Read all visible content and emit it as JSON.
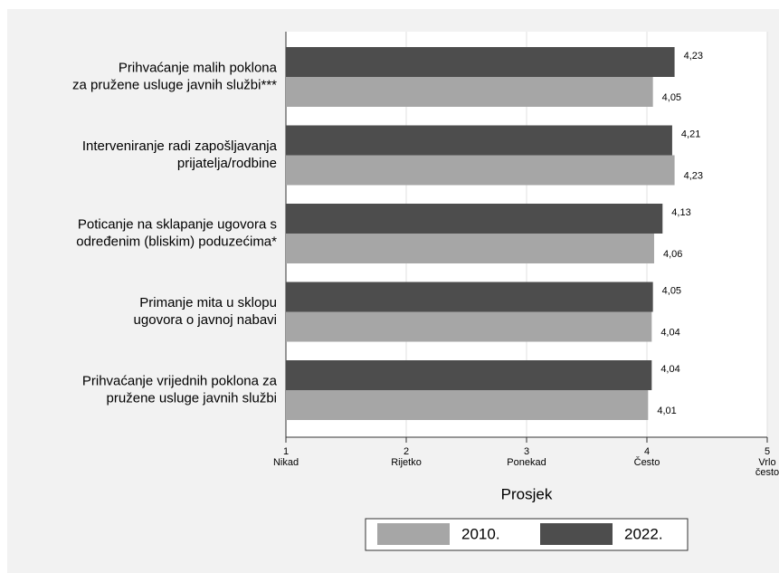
{
  "chart_data": {
    "type": "barh",
    "xlabel": "Prosjek",
    "categories": [
      [
        "Prihvaćanje malih poklona",
        "za pružene usluge javnih službi***"
      ],
      [
        "Interveniranje radi zapošljavanja",
        "prijatelja/rodbine"
      ],
      [
        "Poticanje na sklapanje ugovora s",
        "određenim (bliskim) poduzećima*"
      ],
      [
        "Primanje mita u sklopu",
        "ugovora o javnoj nabavi"
      ],
      [
        "Prihvaćanje vrijednih poklona za",
        "pružene usluge javnih službi"
      ]
    ],
    "series": [
      {
        "name": "2010.",
        "color": "#a6a6a6",
        "values": [
          4.05,
          4.23,
          4.06,
          4.04,
          4.01
        ],
        "value_labels": [
          "4,05",
          "4,23",
          "4,06",
          "4,04",
          "4,01"
        ]
      },
      {
        "name": "2022.",
        "color": "#4d4d4d",
        "values": [
          4.23,
          4.21,
          4.13,
          4.05,
          4.04
        ],
        "value_labels": [
          "4,23",
          "4,21",
          "4,13",
          "4,05",
          "4,04"
        ]
      }
    ],
    "xlim": [
      1,
      5
    ],
    "xticks": [
      1,
      2,
      3,
      4,
      5
    ],
    "xtick_names": [
      [
        "Nikad"
      ],
      [
        "Rijetko"
      ],
      [
        "Ponekad"
      ],
      [
        "Često"
      ],
      [
        "Vrlo",
        "često"
      ]
    ],
    "grid": true
  }
}
